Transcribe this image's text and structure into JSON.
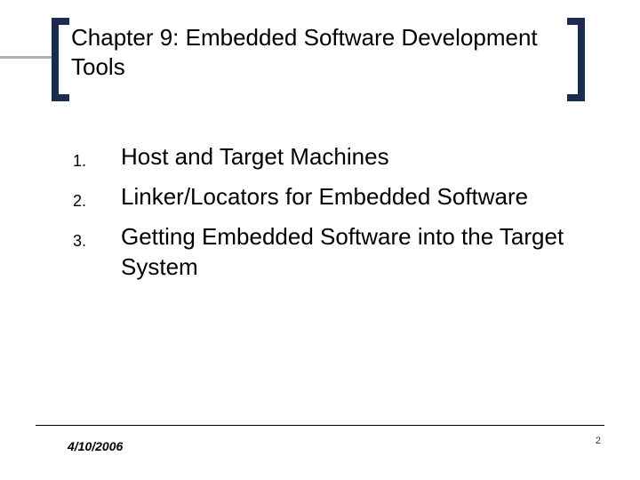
{
  "colors": {
    "bracket": "#1c2c50",
    "hrule": "#a9b0b9",
    "background": "#ffffff",
    "text": "#000000"
  },
  "typography": {
    "title_fontsize": 26,
    "body_fontsize": 26,
    "number_fontsize": 18,
    "footer_date_fontsize": 14,
    "footer_page_fontsize": 11,
    "font_family": "Arial"
  },
  "title": "Chapter 9: Embedded Software Development Tools",
  "list": {
    "items": [
      {
        "num": "1.",
        "text": "Host and Target Machines"
      },
      {
        "num": "2.",
        "text": "Linker/Locators for Embedded Software"
      },
      {
        "num": "3.",
        "text": "Getting Embedded Software into the Target System"
      }
    ]
  },
  "footer": {
    "date": "4/10/2006",
    "page": "2"
  }
}
